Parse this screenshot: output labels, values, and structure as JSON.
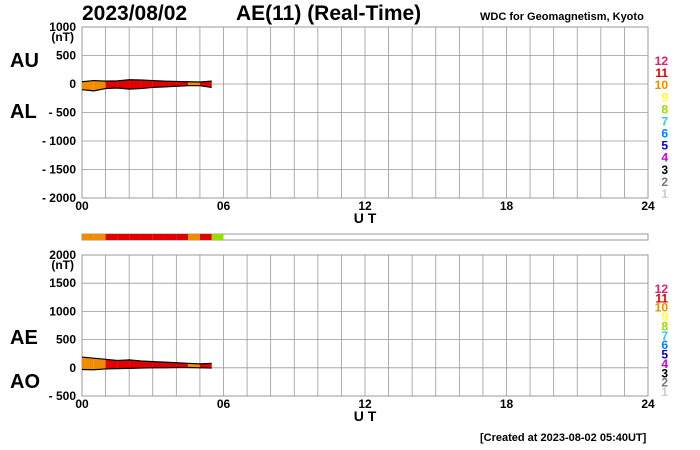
{
  "header": {
    "date": "2023/08/02",
    "title": "AE(11) (Real-Time)",
    "credit": "WDC for Geomagnetism, Kyoto"
  },
  "footer": {
    "created": "[Created at 2023-08-02 05:40UT]"
  },
  "colors": {
    "activity_scale": {
      "12": "#e0206c",
      "11": "#e00000",
      "10": "#f08c00",
      "9": "#ffff33",
      "8": "#99dd00",
      "7": "#33cccc",
      "6": "#0080ff",
      "5": "#0000cc",
      "4": "#cc00cc",
      "3": "#000000",
      "2": "#777777",
      "1": "#cccccc"
    },
    "grid": "#999999"
  },
  "chart_data": [
    {
      "type": "area",
      "panel": "upper",
      "series": [
        {
          "name": "AU",
          "x": [
            0,
            0.5,
            1,
            1.5,
            2,
            2.5,
            3,
            3.5,
            4,
            4.5,
            5,
            5.5
          ],
          "values": [
            40,
            60,
            50,
            55,
            75,
            70,
            60,
            50,
            45,
            40,
            35,
            50
          ]
        },
        {
          "name": "AL",
          "x": [
            0,
            0.5,
            1,
            1.5,
            2,
            2.5,
            3,
            3.5,
            4,
            4.5,
            5,
            5.5
          ],
          "values": [
            -100,
            -120,
            -80,
            -70,
            -90,
            -80,
            -60,
            -50,
            -40,
            -30,
            -30,
            -60
          ]
        }
      ],
      "ylabel": "(nT)",
      "yticks": [
        "1000",
        "500",
        "0",
        "- 500",
        "- 1000",
        "- 1500",
        "- 2000"
      ],
      "yticks_values": [
        1000,
        500,
        0,
        -500,
        -1000,
        -1500,
        -2000
      ],
      "ylim": [
        -2000,
        1000
      ],
      "xlabel": "U T",
      "xticks": [
        "00",
        "06",
        "12",
        "18",
        "24"
      ],
      "xlim": [
        0,
        24
      ],
      "grid": true,
      "legend_scale": [
        "12",
        "11",
        "10",
        "9",
        "8",
        "7",
        "6",
        "5",
        "4",
        "3",
        "2",
        "1"
      ]
    },
    {
      "type": "area",
      "panel": "lower",
      "series": [
        {
          "name": "AE",
          "x": [
            0,
            0.5,
            1,
            1.5,
            2,
            2.5,
            3,
            3.5,
            4,
            4.5,
            5,
            5.5
          ],
          "values": [
            190,
            170,
            150,
            130,
            140,
            120,
            110,
            100,
            90,
            80,
            70,
            80
          ]
        },
        {
          "name": "AO",
          "x": [
            0,
            0.5,
            1,
            1.5,
            2,
            2.5,
            3,
            3.5,
            4,
            4.5,
            5,
            5.5
          ],
          "values": [
            -30,
            -35,
            -20,
            -15,
            -10,
            -5,
            0,
            0,
            5,
            5,
            0,
            -5
          ]
        }
      ],
      "ylabel": "(nT)",
      "yticks": [
        "2000",
        "1500",
        "1000",
        "500",
        "0",
        "- 500"
      ],
      "yticks_values": [
        2000,
        1500,
        1000,
        500,
        0,
        -500
      ],
      "ylim": [
        -500,
        2000
      ],
      "xlabel": "U T",
      "xticks": [
        "00",
        "06",
        "12",
        "18",
        "24"
      ],
      "xlim": [
        0,
        24
      ],
      "grid": true,
      "legend_scale": [
        "12",
        "11",
        "10",
        "9",
        "8",
        "7",
        "6",
        "5",
        "4",
        "3",
        "2",
        "1"
      ]
    },
    {
      "type": "bar",
      "panel": "activity-strip",
      "x": [
        0,
        0.5,
        1,
        1.5,
        2,
        2.5,
        3,
        3.5,
        4,
        4.5,
        5,
        5.5
      ],
      "levels": [
        10,
        10,
        11,
        11,
        11,
        11,
        11,
        11,
        11,
        10,
        11,
        8
      ]
    }
  ]
}
